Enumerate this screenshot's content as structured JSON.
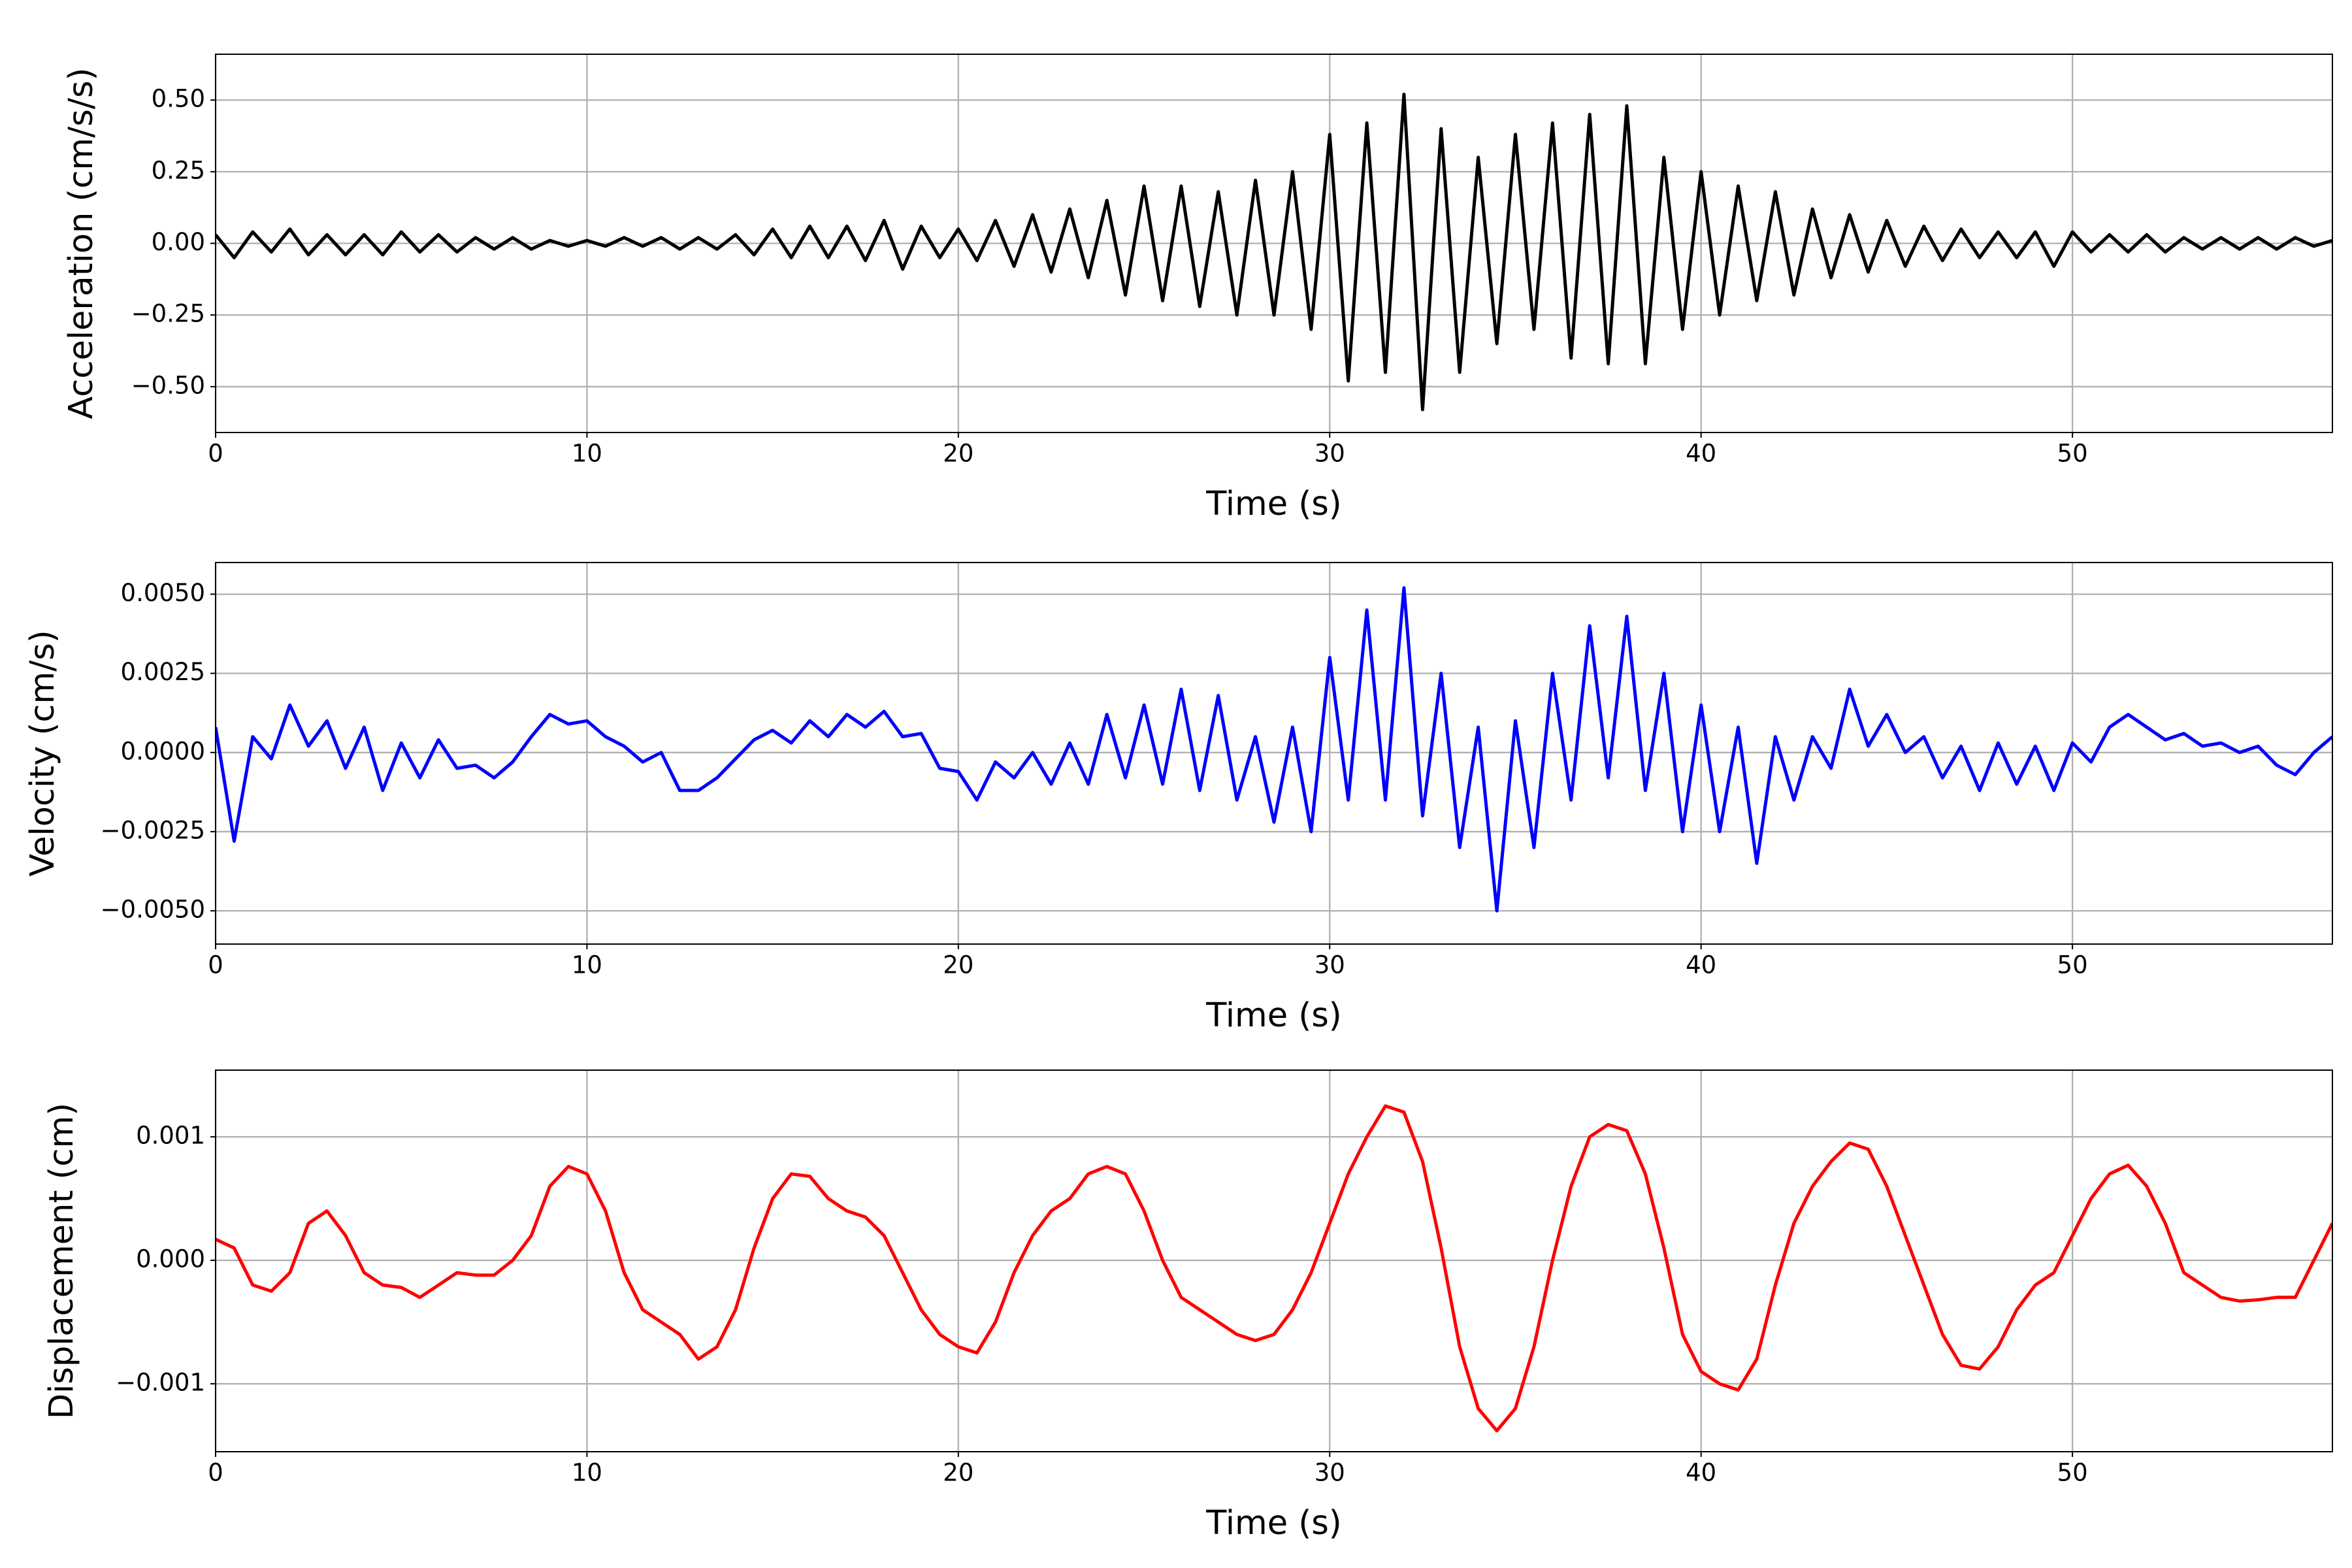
{
  "chart_data": [
    {
      "type": "line",
      "xlabel": "Time (s)",
      "ylabel": "Acceleration (cm/s/s)",
      "xlim": [
        0,
        57
      ],
      "xticks": [
        0,
        10,
        20,
        30,
        40,
        50
      ],
      "ylim": [
        -0.66,
        0.66
      ],
      "yticks": [
        {
          "value": -0.5,
          "label": "−0.50"
        },
        {
          "value": -0.25,
          "label": "−0.25"
        },
        {
          "value": 0,
          "label": "0.00"
        },
        {
          "value": 0.25,
          "label": "0.25"
        },
        {
          "value": 0.5,
          "label": "0.50"
        }
      ],
      "grid": true,
      "series": [
        {
          "color": "#000000",
          "x": [
            0,
            0.5,
            1,
            1.5,
            2,
            2.5,
            3,
            3.5,
            4,
            4.5,
            5,
            5.5,
            6,
            6.5,
            7,
            7.5,
            8,
            8.5,
            9,
            9.5,
            10,
            10.5,
            11,
            11.5,
            12,
            12.5,
            13,
            13.5,
            14,
            14.5,
            15,
            15.5,
            16,
            16.5,
            17,
            17.5,
            18,
            18.5,
            19,
            19.5,
            20,
            20.5,
            21,
            21.5,
            22,
            22.5,
            23,
            23.5,
            24,
            24.5,
            25,
            25.5,
            26,
            26.5,
            27,
            27.5,
            28,
            28.5,
            29,
            29.5,
            30,
            30.5,
            31,
            31.5,
            32,
            32.5,
            33,
            33.5,
            34,
            34.5,
            35,
            35.5,
            36,
            36.5,
            37,
            37.5,
            38,
            38.5,
            39,
            39.5,
            40,
            40.5,
            41,
            41.5,
            42,
            42.5,
            43,
            43.5,
            44,
            44.5,
            45,
            45.5,
            46,
            46.5,
            47,
            47.5,
            48,
            48.5,
            49,
            49.5,
            50,
            50.5,
            51,
            51.5,
            52,
            52.5,
            53,
            53.5,
            54,
            54.5,
            55,
            55.5,
            56,
            56.5,
            57
          ],
          "values": [
            0.03,
            -0.05,
            0.04,
            -0.03,
            0.05,
            -0.04,
            0.03,
            -0.04,
            0.03,
            -0.04,
            0.04,
            -0.03,
            0.03,
            -0.03,
            0.02,
            -0.02,
            0.02,
            -0.02,
            0.01,
            -0.01,
            0.01,
            -0.01,
            0.02,
            -0.01,
            0.02,
            -0.02,
            0.02,
            -0.02,
            0.03,
            -0.04,
            0.05,
            -0.05,
            0.06,
            -0.05,
            0.06,
            -0.06,
            0.08,
            -0.09,
            0.06,
            -0.05,
            0.05,
            -0.06,
            0.08,
            -0.08,
            0.1,
            -0.1,
            0.12,
            -0.12,
            0.15,
            -0.18,
            0.2,
            -0.2,
            0.2,
            -0.22,
            0.18,
            -0.25,
            0.22,
            -0.25,
            0.25,
            -0.3,
            0.38,
            -0.48,
            0.42,
            -0.45,
            0.52,
            -0.58,
            0.4,
            -0.45,
            0.3,
            -0.35,
            0.38,
            -0.3,
            0.42,
            -0.4,
            0.45,
            -0.42,
            0.48,
            -0.42,
            0.3,
            -0.3,
            0.25,
            -0.25,
            0.2,
            -0.2,
            0.18,
            -0.18,
            0.12,
            -0.12,
            0.1,
            -0.1,
            0.08,
            -0.08,
            0.06,
            -0.06,
            0.05,
            -0.05,
            0.04,
            -0.05,
            0.04,
            -0.08,
            0.04,
            -0.03,
            0.03,
            -0.03,
            0.03,
            -0.03,
            0.02,
            -0.02,
            0.02,
            -0.02,
            0.02,
            -0.02,
            0.02,
            -0.01,
            0.01
          ]
        }
      ]
    },
    {
      "type": "line",
      "xlabel": "Time (s)",
      "ylabel": "Velocity (cm/s)",
      "xlim": [
        0,
        57
      ],
      "xticks": [
        0,
        10,
        20,
        30,
        40,
        50
      ],
      "ylim": [
        -0.00605,
        0.006
      ],
      "yticks": [
        {
          "value": -0.005,
          "label": "−0.0050"
        },
        {
          "value": -0.0025,
          "label": "−0.0025"
        },
        {
          "value": 0,
          "label": "0.0000"
        },
        {
          "value": 0.0025,
          "label": "0.0025"
        },
        {
          "value": 0.005,
          "label": "0.0050"
        }
      ],
      "grid": true,
      "series": [
        {
          "color": "#0000ff",
          "x": [
            0,
            0.5,
            1,
            1.5,
            2,
            2.5,
            3,
            3.5,
            4,
            4.5,
            5,
            5.5,
            6,
            6.5,
            7,
            7.5,
            8,
            8.5,
            9,
            9.5,
            10,
            10.5,
            11,
            11.5,
            12,
            12.5,
            13,
            13.5,
            14,
            14.5,
            15,
            15.5,
            16,
            16.5,
            17,
            17.5,
            18,
            18.5,
            19,
            19.5,
            20,
            20.5,
            21,
            21.5,
            22,
            22.5,
            23,
            23.5,
            24,
            24.5,
            25,
            25.5,
            26,
            26.5,
            27,
            27.5,
            28,
            28.5,
            29,
            29.5,
            30,
            30.5,
            31,
            31.5,
            32,
            32.5,
            33,
            33.5,
            34,
            34.5,
            35,
            35.5,
            36,
            36.5,
            37,
            37.5,
            38,
            38.5,
            39,
            39.5,
            40,
            40.5,
            41,
            41.5,
            42,
            42.5,
            43,
            43.5,
            44,
            44.5,
            45,
            45.5,
            46,
            46.5,
            47,
            47.5,
            48,
            48.5,
            49,
            49.5,
            50,
            50.5,
            51,
            51.5,
            52,
            52.5,
            53,
            53.5,
            54,
            54.5,
            55,
            55.5,
            56,
            56.5,
            57
          ],
          "values": [
            0.0008,
            -0.0028,
            0.0005,
            -0.0002,
            0.0015,
            0.0002,
            0.001,
            -0.0005,
            0.0008,
            -0.0012,
            0.0003,
            -0.0008,
            0.0004,
            -0.0005,
            -0.0004,
            -0.0008,
            -0.0003,
            0.0005,
            0.0012,
            0.0009,
            0.001,
            0.0005,
            0.0002,
            -0.0003,
            0,
            -0.0012,
            -0.0012,
            -0.0008,
            -0.0002,
            0.0004,
            0.0007,
            0.0003,
            0.001,
            0.0005,
            0.0012,
            0.0008,
            0.0013,
            0.0005,
            0.0006,
            -0.0005,
            -0.0006,
            -0.0015,
            -0.0003,
            -0.0008,
            0,
            -0.001,
            0.0003,
            -0.001,
            0.0012,
            -0.0008,
            0.0015,
            -0.001,
            0.002,
            -0.0012,
            0.0018,
            -0.0015,
            0.0005,
            -0.0022,
            0.0008,
            -0.0025,
            0.003,
            -0.0015,
            0.0045,
            -0.0015,
            0.0052,
            -0.002,
            0.0025,
            -0.003,
            0.0008,
            -0.005,
            0.001,
            -0.003,
            0.0025,
            -0.0015,
            0.004,
            -0.0008,
            0.0043,
            -0.0012,
            0.0025,
            -0.0025,
            0.0015,
            -0.0025,
            0.0008,
            -0.0035,
            0.0005,
            -0.0015,
            0.0005,
            -0.0005,
            0.002,
            0.0002,
            0.0012,
            0,
            0.0005,
            -0.0008,
            0.0002,
            -0.0012,
            0.0003,
            -0.001,
            0.0002,
            -0.0012,
            0.0003,
            -0.0003,
            0.0008,
            0.0012,
            0.0008,
            0.0004,
            0.0006,
            0.0002,
            0.0003,
            0,
            0.0002,
            -0.0004,
            -0.0007,
            0,
            0.0005
          ]
        }
      ]
    },
    {
      "type": "line",
      "xlabel": "Time (s)",
      "ylabel": "Displacement (cm)",
      "xlim": [
        0,
        57
      ],
      "xticks": [
        0,
        10,
        20,
        30,
        40,
        50
      ],
      "ylim": [
        -0.00155,
        0.00154
      ],
      "yticks": [
        {
          "value": -0.001,
          "label": "−0.001"
        },
        {
          "value": 0,
          "label": "0.000"
        },
        0.001
      ],
      "grid": true,
      "series": [
        {
          "color": "#ff0000",
          "x": [
            0,
            0.5,
            1,
            1.5,
            2,
            2.5,
            3,
            3.5,
            4,
            4.5,
            5,
            5.5,
            6,
            6.5,
            7,
            7.5,
            8,
            8.5,
            9,
            9.5,
            10,
            10.5,
            11,
            11.5,
            12,
            12.5,
            13,
            13.5,
            14,
            14.5,
            15,
            15.5,
            16,
            16.5,
            17,
            17.5,
            18,
            18.5,
            19,
            19.5,
            20,
            20.5,
            21,
            21.5,
            22,
            22.5,
            23,
            23.5,
            24,
            24.5,
            25,
            25.5,
            26,
            26.5,
            27,
            27.5,
            28,
            28.5,
            29,
            29.5,
            30,
            30.5,
            31,
            31.5,
            32,
            32.5,
            33,
            33.5,
            34,
            34.5,
            35,
            35.5,
            36,
            36.5,
            37,
            37.5,
            38,
            38.5,
            39,
            39.5,
            40,
            40.5,
            41,
            41.5,
            42,
            42.5,
            43,
            43.5,
            44,
            44.5,
            45,
            45.5,
            46,
            46.5,
            47,
            47.5,
            48,
            48.5,
            49,
            49.5,
            50,
            50.5,
            51,
            51.5,
            52,
            52.5,
            53,
            53.5,
            54,
            54.5,
            55,
            55.5,
            56,
            56.5,
            57
          ],
          "values": [
            0.00017,
            0.0001,
            -0.0002,
            -0.00025,
            -0.0001,
            0.0003,
            0.0004,
            0.0002,
            -0.0001,
            -0.0002,
            -0.00022,
            -0.0003,
            -0.0002,
            -0.0001,
            -0.00012,
            -0.00012,
            0,
            0.0002,
            0.0006,
            0.00076,
            0.0007,
            0.0004,
            -0.0001,
            -0.0004,
            -0.0005,
            -0.0006,
            -0.0008,
            -0.0007,
            -0.0004,
            0.0001,
            0.0005,
            0.0007,
            0.00068,
            0.0005,
            0.0004,
            0.00035,
            0.0002,
            -0.0001,
            -0.0004,
            -0.0006,
            -0.0007,
            -0.00075,
            -0.0005,
            -0.0001,
            0.0002,
            0.0004,
            0.0005,
            0.0007,
            0.00076,
            0.0007,
            0.0004,
            0,
            -0.0003,
            -0.0004,
            -0.0005,
            -0.0006,
            -0.00065,
            -0.0006,
            -0.0004,
            -0.0001,
            0.0003,
            0.0007,
            0.001,
            0.00125,
            0.0012,
            0.0008,
            0.0001,
            -0.0007,
            -0.0012,
            -0.00138,
            -0.0012,
            -0.0007,
            0,
            0.0006,
            0.001,
            0.0011,
            0.00105,
            0.0007,
            0.0001,
            -0.0006,
            -0.0009,
            -0.001,
            -0.00105,
            -0.0008,
            -0.0002,
            0.0003,
            0.0006,
            0.0008,
            0.00095,
            0.0009,
            0.0006,
            0.0002,
            -0.0002,
            -0.0006,
            -0.00085,
            -0.00088,
            -0.0007,
            -0.0004,
            -0.0002,
            -0.0001,
            0.0002,
            0.0005,
            0.0007,
            0.00077,
            0.0006,
            0.0003,
            -0.0001,
            -0.0002,
            -0.0003,
            -0.00033,
            -0.00032,
            -0.0003,
            -0.0003,
            0,
            0.0003
          ]
        }
      ]
    }
  ]
}
